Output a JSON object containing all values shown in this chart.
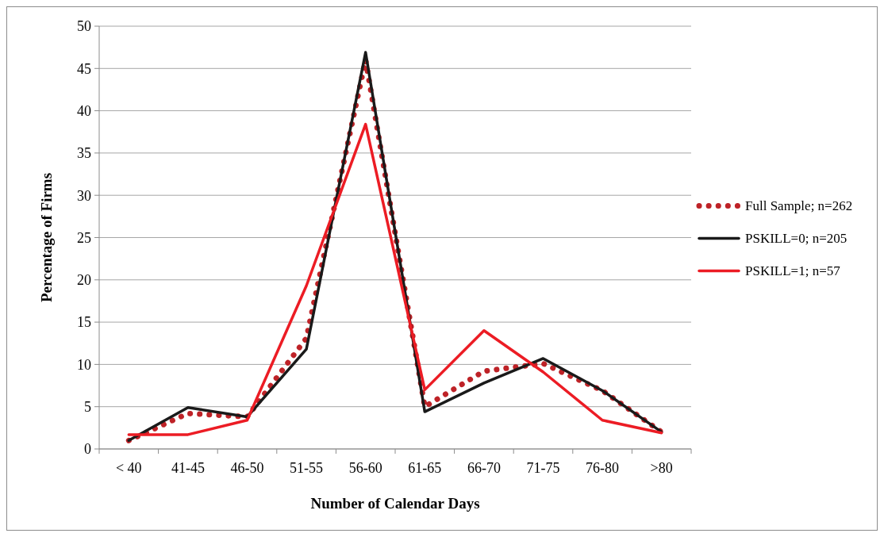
{
  "chart_data": {
    "type": "line",
    "xlabel": "Number of  Calendar Days",
    "ylabel": "Percentage  of  Firms",
    "categories": [
      "< 40",
      "41-45",
      "46-50",
      "51-55",
      "56-60",
      "61-65",
      "66-70",
      "71-75",
      "76-80",
      ">80"
    ],
    "series": [
      {
        "name": "Full Sample; n=262",
        "color": "#be2227",
        "line_style": "dotted",
        "values": [
          1.0,
          4.2,
          3.8,
          13.1,
          46.0,
          5.0,
          9.2,
          10.1,
          6.9,
          2.0
        ]
      },
      {
        "name": "PSKILL=0; n=205",
        "color": "#1a1a1a",
        "line_style": "solid",
        "values": [
          1.0,
          4.9,
          3.8,
          11.8,
          46.9,
          4.4,
          7.8,
          10.7,
          6.9,
          2.0
        ]
      },
      {
        "name": "PSKILL=1; n=57",
        "color": "#ec1c24",
        "line_style": "solid",
        "values": [
          1.7,
          1.7,
          3.4,
          19.3,
          38.4,
          7.0,
          14.0,
          9.1,
          3.4,
          1.9
        ]
      }
    ],
    "ylim": [
      0,
      50
    ],
    "yticks": [
      0,
      5,
      10,
      15,
      20,
      25,
      30,
      35,
      40,
      45,
      50
    ],
    "grid": "y",
    "legend": "right"
  }
}
